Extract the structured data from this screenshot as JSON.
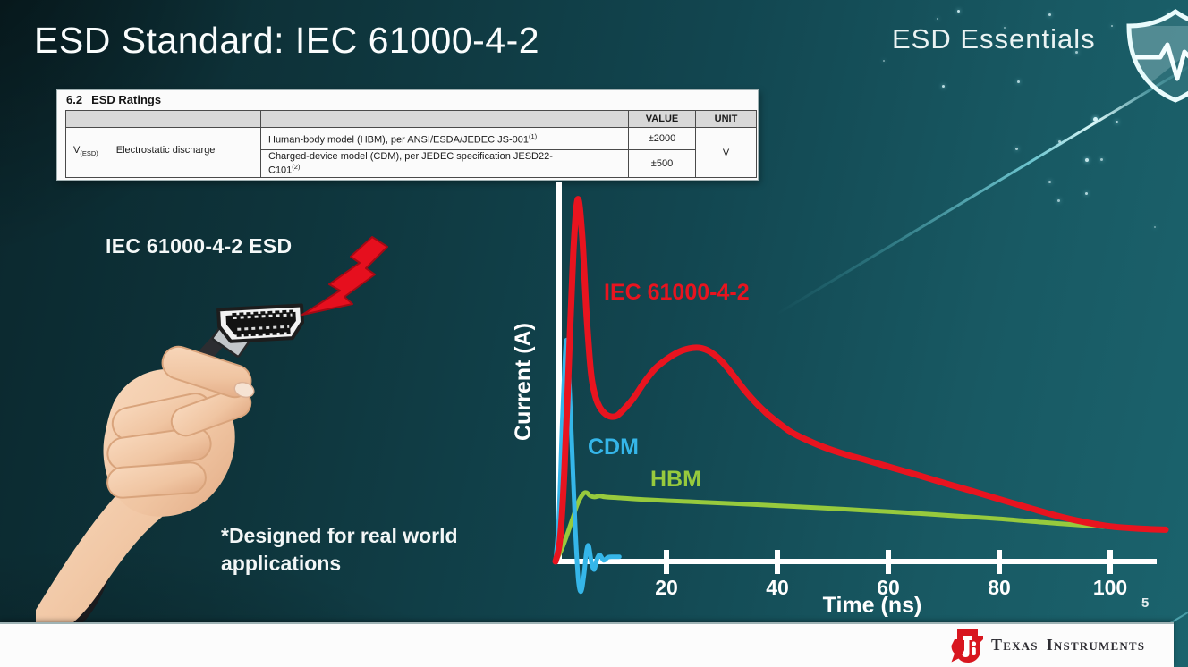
{
  "slide": {
    "title": "ESD Standard: IEC 61000-4-2",
    "brand_title": "ESD Essentials",
    "page_number": "5",
    "colors": {
      "background_teal": "#124650",
      "iec_red": "#e8141f",
      "cdm_blue": "#35b6e9",
      "hbm_green": "#97ca3d",
      "ti_red": "#d8161f"
    },
    "icons": {
      "top_right": "shield-with-pulse",
      "illustration": "lightning-bolt, hand-holding-hdmi-cable",
      "footer": "ti-logo"
    }
  },
  "ratings_table": {
    "section_number": "6.2",
    "section_title": "ESD Ratings",
    "col_headers": [
      "VALUE",
      "UNIT"
    ],
    "symbol": [
      {
        "t": "V"
      },
      {
        "t": "(ESD)",
        "sub": true
      }
    ],
    "parameter": "Electrostatic discharge",
    "rows": [
      {
        "desc": [
          {
            "t": "Human-body model (HBM), per ANSI/ESDA/JEDEC JS-001"
          },
          {
            "t": "(1)",
            "sup": true
          }
        ],
        "value": "±2000"
      },
      {
        "desc": [
          {
            "t": "Charged-device model (CDM), per JEDEC specification JESD22-"
          },
          {
            "t": "C101",
            "br": true
          },
          {
            "t": "(2)",
            "sup": true
          }
        ],
        "value": "±500"
      }
    ],
    "unit": "V"
  },
  "illustration": {
    "caption": "IEC 61000-4-2 ESD",
    "footnote_line1": "*Designed for real world",
    "footnote_line2": "applications"
  },
  "chart_data": {
    "type": "line",
    "xlabel": "Time (ns)",
    "ylabel": "Current (A)",
    "x_ticks": [
      20,
      40,
      60,
      80,
      100
    ],
    "xlim": [
      0,
      112
    ],
    "ylim": [
      -0.12,
      1.05
    ],
    "y_axis_numeric_labels": false,
    "grid": false,
    "legend": "inline-labels",
    "series": [
      {
        "name": "IEC 61000-4-2",
        "color": "#e8141f",
        "x": [
          0,
          0.8,
          1.6,
          2.4,
          3.2,
          4,
          4.8,
          5.6,
          6.4,
          7.2,
          8,
          9,
          10,
          11,
          12,
          14,
          16,
          18,
          20,
          22,
          24,
          26,
          28,
          30,
          32,
          34,
          36,
          38,
          40,
          42,
          44,
          48,
          52,
          56,
          60,
          65,
          70,
          75,
          80,
          85,
          90,
          95,
          100,
          105,
          110
        ],
        "y": [
          0,
          0.06,
          0.25,
          0.55,
          0.85,
          1.0,
          0.9,
          0.68,
          0.52,
          0.455,
          0.425,
          0.407,
          0.4,
          0.402,
          0.415,
          0.45,
          0.495,
          0.533,
          0.558,
          0.577,
          0.588,
          0.59,
          0.578,
          0.552,
          0.515,
          0.475,
          0.44,
          0.41,
          0.385,
          0.362,
          0.345,
          0.318,
          0.297,
          0.28,
          0.262,
          0.24,
          0.217,
          0.195,
          0.172,
          0.15,
          0.128,
          0.11,
          0.097,
          0.091,
          0.088
        ]
      },
      {
        "name": "CDM",
        "color": "#35b6e9",
        "x": [
          0,
          0.6,
          1.2,
          1.7,
          2,
          2.4,
          3,
          3.6,
          4.1,
          4.6,
          5.1,
          5.6,
          6,
          6.5,
          7,
          7.5,
          8,
          8.7,
          9.5,
          10.5,
          11.5
        ],
        "y": [
          0,
          0.12,
          0.38,
          0.56,
          0.61,
          0.52,
          0.3,
          0.08,
          -0.05,
          -0.083,
          -0.04,
          0.03,
          0.042,
          -0.005,
          -0.022,
          0.008,
          0.018,
          0.003,
          0.012,
          0.013,
          0.013
        ]
      },
      {
        "name": "HBM",
        "color": "#97ca3d",
        "x": [
          0,
          1,
          2,
          3,
          4,
          5,
          5.6,
          6.2,
          7,
          8,
          9,
          12,
          16,
          20,
          26,
          32,
          40,
          48,
          56,
          64,
          72,
          80,
          88,
          96,
          102,
          105
        ],
        "y": [
          0,
          0.03,
          0.07,
          0.115,
          0.16,
          0.187,
          0.19,
          0.182,
          0.178,
          0.181,
          0.178,
          0.175,
          0.171,
          0.168,
          0.164,
          0.16,
          0.154,
          0.148,
          0.141,
          0.134,
          0.126,
          0.118,
          0.108,
          0.099,
          0.094,
          0.092
        ]
      }
    ]
  },
  "footer": {
    "brand_word1": "Texas",
    "brand_word2": "Instruments"
  }
}
